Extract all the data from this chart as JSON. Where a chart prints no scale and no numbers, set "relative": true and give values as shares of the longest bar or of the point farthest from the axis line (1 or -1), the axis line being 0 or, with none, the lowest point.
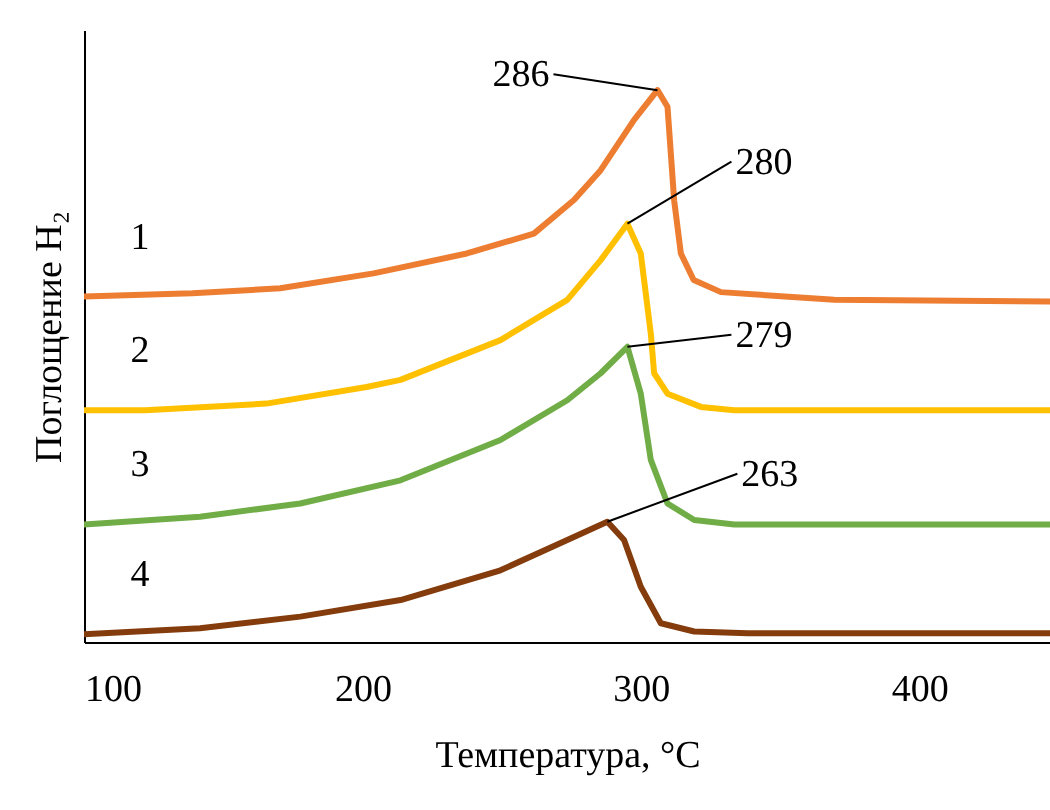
{
  "chart_data": {
    "type": "line",
    "relative": true,
    "xlabel": "Температура,  °C",
    "ylabel": "Поглощение H₂",
    "xlim": [
      100,
      447
    ],
    "xticks": [
      100,
      200,
      300,
      400
    ],
    "grid": false,
    "marker": "none",
    "line_style": "solid",
    "series": [
      {
        "name": "1",
        "color": "#ed7d31",
        "x": [
          100,
          139,
          170.5,
          204,
          237.5,
          261.6,
          276,
          285.6,
          297.6,
          306,
          309.6,
          312,
          314.4,
          319,
          328.8,
          369.5,
          447
        ],
        "values": [
          0.626,
          0.632,
          0.641,
          0.668,
          0.704,
          0.74,
          0.801,
          0.855,
          0.946,
          1.0,
          0.97,
          0.8,
          0.704,
          0.656,
          0.634,
          0.62,
          0.617
        ]
      },
      {
        "name": "2",
        "color": "#ffc000",
        "x": [
          100,
          122,
          165.5,
          201.5,
          213.7,
          249.6,
          273.6,
          285.6,
          295.2,
          300,
          303.6,
          304.8,
          309.6,
          321.6,
          333.6,
          447
        ],
        "values": [
          0.42,
          0.42,
          0.432,
          0.462,
          0.475,
          0.547,
          0.62,
          0.692,
          0.758,
          0.704,
          0.559,
          0.487,
          0.45,
          0.426,
          0.42,
          0.42
        ]
      },
      {
        "name": "3",
        "color": "#70ad47",
        "x": [
          100,
          141.7,
          177.7,
          213.7,
          249.6,
          273.6,
          285.6,
          295.2,
          300,
          303.6,
          309.6,
          319.2,
          333.6,
          447
        ],
        "values": [
          0.213,
          0.227,
          0.251,
          0.293,
          0.366,
          0.438,
          0.487,
          0.535,
          0.45,
          0.33,
          0.251,
          0.221,
          0.213,
          0.213
        ]
      },
      {
        "name": "4",
        "color": "#843c0c",
        "x": [
          100,
          141.7,
          177.7,
          213.7,
          249.6,
          273.6,
          288,
          294,
          300,
          307.2,
          319.2,
          338.4,
          447
        ],
        "values": [
          0.014,
          0.025,
          0.046,
          0.076,
          0.13,
          0.185,
          0.218,
          0.185,
          0.1,
          0.034,
          0.019,
          0.016,
          0.016
        ]
      }
    ],
    "annotations": [
      {
        "text": "286",
        "x": 306,
        "y": 1.0
      },
      {
        "text": "280",
        "x": 295.2,
        "y": 0.758
      },
      {
        "text": "279",
        "x": 295.2,
        "y": 0.535
      },
      {
        "text": "263",
        "x": 288,
        "y": 0.218
      }
    ]
  }
}
